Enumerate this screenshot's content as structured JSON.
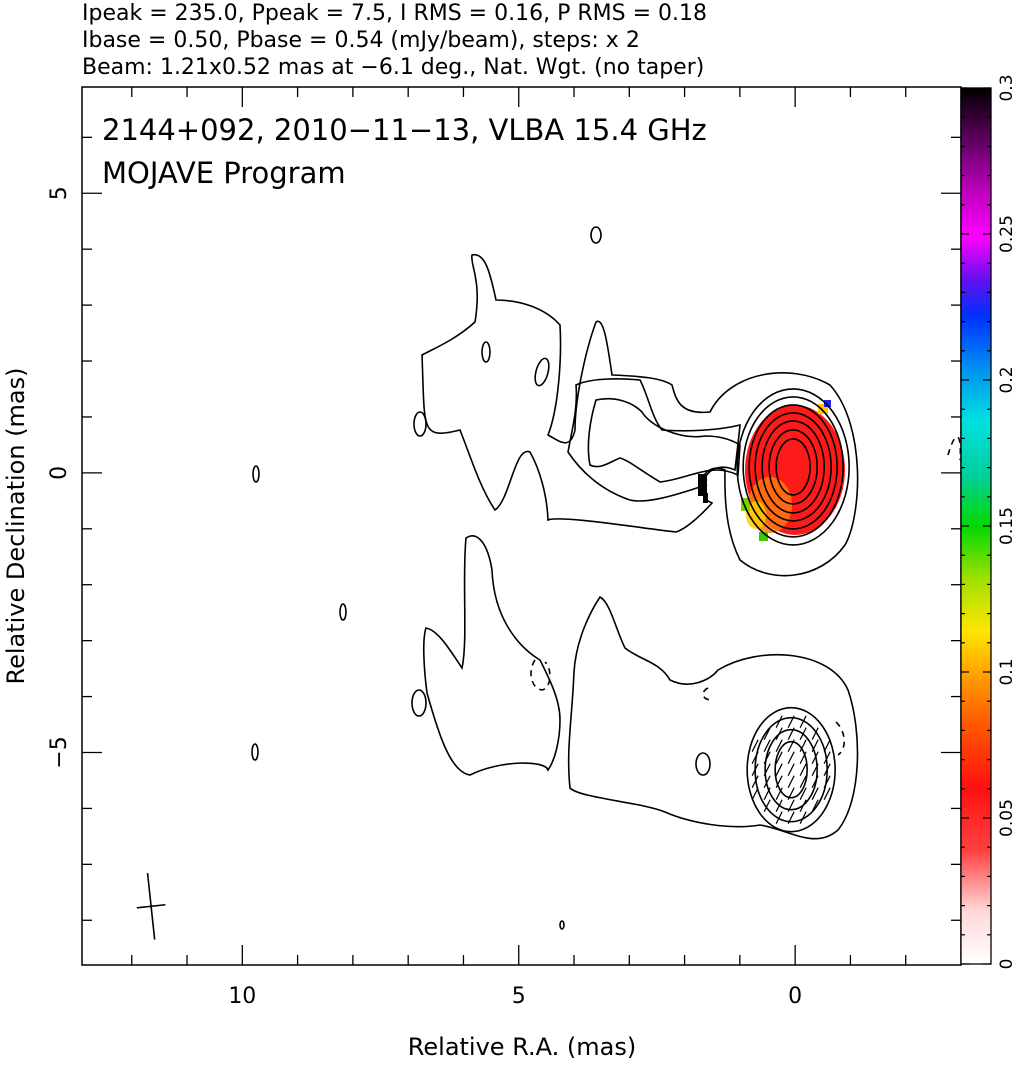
{
  "header": {
    "line1": "Ipeak = 235.0, Ppeak = 7.5, I RMS = 0.16, P RMS = 0.18",
    "line2": "Ibase = 0.50, Pbase = 0.54 (mJy/beam), steps: x 2",
    "line3": "Beam: 1.21x0.52 mas at −6.1 deg., Nat. Wgt. (no taper)"
  },
  "chart_data": {
    "type": "heatmap",
    "title": "2144+092, 2010−11−13, VLBA 15.4 GHz",
    "subtitle": "MOJAVE Program",
    "xlabel": "Relative R.A. (mas)",
    "ylabel": "Relative Declination (mas)",
    "xlim": [
      12.9,
      -3.0
    ],
    "ylim": [
      -8.8,
      6.9
    ],
    "x_ticks": [
      10,
      5,
      0
    ],
    "x_tick_labels": [
      "10",
      "5",
      "0"
    ],
    "y_ticks": [
      5,
      0,
      -5
    ],
    "y_tick_labels": [
      "5",
      "0",
      "−5"
    ],
    "colorbar": {
      "range": [
        0,
        0.3
      ],
      "ticks": [
        0,
        0.05,
        0.1,
        0.15,
        0.2,
        0.25,
        0.3
      ],
      "tick_labels": [
        "0",
        "0.05",
        "0.1",
        "0.15",
        "0.2",
        "0.25",
        "0.3"
      ]
    },
    "beam": {
      "major_mas": 1.21,
      "minor_mas": 0.52,
      "pa_deg": -6.1,
      "center": [
        11.65,
        -7.75
      ]
    },
    "cores": [
      {
        "x": 0.0,
        "y": 0.25,
        "fill": true
      },
      {
        "x": 0.0,
        "y": -4.95,
        "fill": false
      }
    ]
  },
  "colors": {
    "ink": "#000000",
    "background": "#ffffff"
  }
}
